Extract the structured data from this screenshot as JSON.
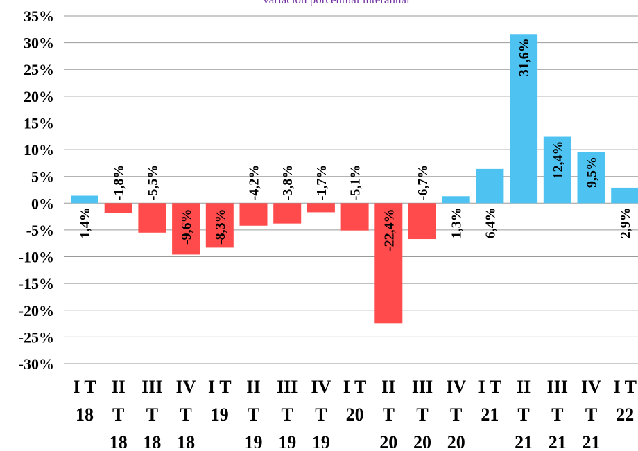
{
  "chart_data": {
    "type": "bar",
    "title": "variación porcentual interanual",
    "xlabel": "",
    "ylabel": "",
    "ylim": [
      -30,
      35
    ],
    "y_ticks": [
      35,
      30,
      25,
      20,
      15,
      10,
      5,
      0,
      -5,
      -10,
      -15,
      -20,
      -25,
      -30
    ],
    "y_tick_labels": [
      "35%",
      "30%",
      "25%",
      "20%",
      "15%",
      "10%",
      "5%",
      "0%",
      "-5%",
      "-10%",
      "-15%",
      "-20%",
      "-25%",
      "-30%"
    ],
    "grid": true,
    "legend": "none",
    "categories": [
      [
        "I T",
        "18"
      ],
      [
        "II",
        "T",
        "18"
      ],
      [
        "III",
        "T",
        "18"
      ],
      [
        "IV",
        "T",
        "18"
      ],
      [
        "I T",
        "19"
      ],
      [
        "II",
        "T",
        "19"
      ],
      [
        "III",
        "T",
        "19"
      ],
      [
        "IV",
        "T",
        "19"
      ],
      [
        "I T",
        "20"
      ],
      [
        "II",
        "T",
        "20"
      ],
      [
        "III",
        "T",
        "20"
      ],
      [
        "IV",
        "T",
        "20"
      ],
      [
        "I T",
        "21"
      ],
      [
        "II",
        "T",
        "21"
      ],
      [
        "III",
        "T",
        "21"
      ],
      [
        "IV",
        "T",
        "21"
      ],
      [
        "I T",
        "22"
      ]
    ],
    "values": [
      1.4,
      -1.8,
      -5.5,
      -9.6,
      -8.3,
      -4.2,
      -3.8,
      -1.7,
      -5.1,
      -22.4,
      -6.7,
      1.3,
      6.4,
      31.6,
      12.4,
      9.5,
      2.9
    ],
    "data_labels": [
      "1,4%",
      "-1,8%",
      "-5,5%",
      "-9,6%",
      "-8,3%",
      "-4,2%",
      "-3,8%",
      "-1,7%",
      "-5,1%",
      "-22,4%",
      "-6,7%",
      "1,3%",
      "6,4%",
      "31,6%",
      "12,4%",
      "9,5%",
      "2,9%"
    ],
    "colors": {
      "positive": "#4EC3F1",
      "negative": "#FF4B4B",
      "grid": "#9a9a9a",
      "title": "#7030A0",
      "text": "#000000"
    }
  }
}
